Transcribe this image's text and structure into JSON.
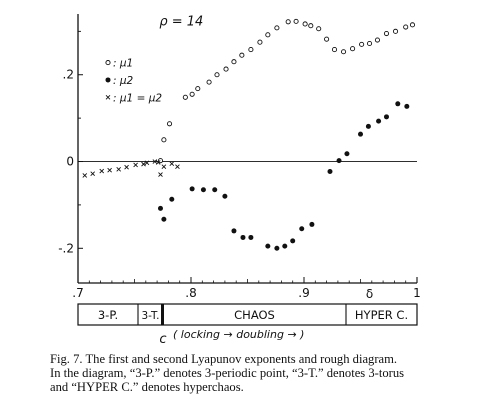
{
  "chart_data": {
    "type": "scatter",
    "annotation": "ρ = 14",
    "x_ticks": [
      ".7",
      ".8",
      ".9",
      "1"
    ],
    "y_ticks": [
      ".2",
      "0",
      "-.2"
    ],
    "xlim": [
      0.7,
      1.0
    ],
    "ylim": [
      -0.28,
      0.34
    ],
    "legend": [
      {
        "marker": "open-circle",
        "label": ": μ1"
      },
      {
        "marker": "filled-circle",
        "label": ": μ2"
      },
      {
        "marker": "cross",
        "label": ": μ1 = μ2"
      }
    ],
    "series": [
      {
        "marker": "open-circle",
        "points": [
          [
            0.773,
            0.002
          ],
          [
            0.776,
            0.05
          ],
          [
            0.781,
            0.087
          ],
          [
            0.795,
            0.148
          ],
          [
            0.801,
            0.155
          ],
          [
            0.806,
            0.168
          ],
          [
            0.816,
            0.183
          ],
          [
            0.823,
            0.2
          ],
          [
            0.831,
            0.213
          ],
          [
            0.838,
            0.23
          ],
          [
            0.845,
            0.245
          ],
          [
            0.853,
            0.258
          ],
          [
            0.861,
            0.275
          ],
          [
            0.868,
            0.292
          ],
          [
            0.876,
            0.308
          ],
          [
            0.886,
            0.322
          ],
          [
            0.893,
            0.323
          ],
          [
            0.901,
            0.317
          ],
          [
            0.906,
            0.313
          ],
          [
            0.913,
            0.306
          ],
          [
            0.92,
            0.282
          ],
          [
            0.927,
            0.258
          ],
          [
            0.935,
            0.253
          ],
          [
            0.943,
            0.26
          ],
          [
            0.951,
            0.27
          ],
          [
            0.958,
            0.272
          ],
          [
            0.965,
            0.28
          ],
          [
            0.973,
            0.295
          ],
          [
            0.981,
            0.3
          ],
          [
            0.99,
            0.31
          ],
          [
            0.996,
            0.315
          ]
        ]
      },
      {
        "marker": "filled-circle",
        "points": [
          [
            0.773,
            -0.108
          ],
          [
            0.776,
            -0.133
          ],
          [
            0.783,
            -0.087
          ],
          [
            0.801,
            -0.063
          ],
          [
            0.811,
            -0.065
          ],
          [
            0.821,
            -0.065
          ],
          [
            0.83,
            -0.08
          ],
          [
            0.838,
            -0.16
          ],
          [
            0.846,
            -0.175
          ],
          [
            0.853,
            -0.175
          ],
          [
            0.868,
            -0.195
          ],
          [
            0.876,
            -0.2
          ],
          [
            0.883,
            -0.195
          ],
          [
            0.89,
            -0.183
          ],
          [
            0.898,
            -0.155
          ],
          [
            0.907,
            -0.145
          ],
          [
            0.923,
            -0.023
          ],
          [
            0.931,
            0.002
          ],
          [
            0.938,
            0.018
          ],
          [
            0.95,
            0.063
          ],
          [
            0.957,
            0.081
          ],
          [
            0.966,
            0.093
          ],
          [
            0.973,
            0.103
          ],
          [
            0.983,
            0.133
          ],
          [
            0.991,
            0.127
          ]
        ]
      },
      {
        "marker": "cross",
        "points": [
          [
            0.706,
            -0.032
          ],
          [
            0.713,
            -0.028
          ],
          [
            0.721,
            -0.022
          ],
          [
            0.728,
            -0.02
          ],
          [
            0.736,
            -0.018
          ],
          [
            0.743,
            -0.013
          ],
          [
            0.751,
            -0.008
          ],
          [
            0.758,
            -0.006
          ],
          [
            0.761,
            -0.003
          ],
          [
            0.768,
            0.0
          ],
          [
            0.771,
            -0.002
          ],
          [
            0.773,
            -0.03
          ],
          [
            0.776,
            -0.012
          ],
          [
            0.783,
            -0.005
          ],
          [
            0.788,
            -0.012
          ]
        ]
      }
    ]
  },
  "diagram": {
    "labels": [
      "3-P.",
      "3-T.",
      "CHAOS",
      "HYPER C."
    ],
    "marker_c": "c",
    "marker_c_note": "( locking → doubling → )",
    "marker_delta": "δ"
  },
  "caption": {
    "line1": "Fig. 7.  The first and second Lyapunov exponents and rough diagram.",
    "line2": "In the diagram, “3-P.” denotes 3-periodic point, “3-T.” denotes 3-torus",
    "line3": "and “HYPER C.” denotes hyperchaos."
  }
}
